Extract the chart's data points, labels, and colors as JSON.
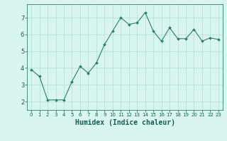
{
  "x": [
    0,
    1,
    2,
    3,
    4,
    5,
    6,
    7,
    8,
    9,
    10,
    11,
    12,
    13,
    14,
    15,
    16,
    17,
    18,
    19,
    20,
    21,
    22,
    23
  ],
  "y": [
    3.9,
    3.5,
    2.1,
    2.1,
    2.1,
    3.2,
    4.1,
    3.7,
    4.3,
    5.4,
    6.2,
    7.0,
    6.6,
    6.7,
    7.3,
    6.2,
    5.6,
    6.4,
    5.75,
    5.75,
    6.3,
    5.6,
    5.8,
    5.7
  ],
  "line_color": "#2e7d6e",
  "marker": "D",
  "marker_size": 2.0,
  "bg_color": "#d8f5f0",
  "grid_color": "#b8e0da",
  "xlabel": "Humidex (Indice chaleur)",
  "xlabel_fontsize": 7,
  "tick_fontsize": 6,
  "xlim": [
    -0.5,
    23.5
  ],
  "ylim": [
    1.5,
    7.8
  ],
  "yticks": [
    2,
    3,
    4,
    5,
    6,
    7
  ],
  "xticks": [
    0,
    1,
    2,
    3,
    4,
    5,
    6,
    7,
    8,
    9,
    10,
    11,
    12,
    13,
    14,
    15,
    16,
    17,
    18,
    19,
    20,
    21,
    22,
    23
  ],
  "spine_color": "#2e7d6e",
  "text_color": "#1a5c52"
}
